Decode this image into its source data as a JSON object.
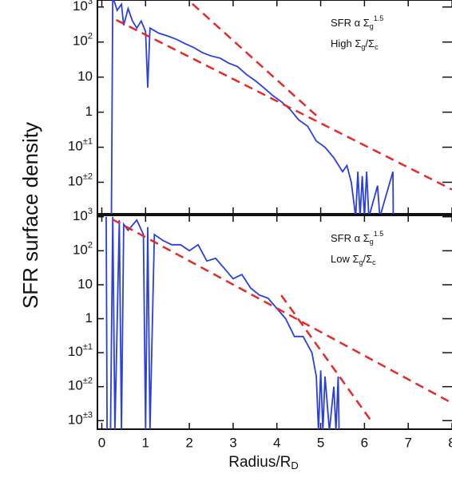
{
  "chart_data": [
    {
      "type": "line",
      "ylabel": "SFR surface density",
      "log_y": true,
      "annotation": [
        [
          "SFR α Σ",
          "g",
          "1.5"
        ],
        [
          "High Σ",
          "g",
          "/Σ",
          "c"
        ]
      ],
      "xlim": [
        -0.1,
        8
      ],
      "xticks": [
        0,
        1,
        2,
        3,
        4,
        5,
        6,
        7,
        8
      ],
      "ylim": [
        0.00126,
        1585
      ],
      "yticks": [
        {
          "value": 1000,
          "label": "10",
          "exponent": "3"
        },
        {
          "value": 100,
          "label": "10",
          "exponent": "2"
        },
        10,
        1,
        {
          "value": 0.1,
          "label": "10",
          "exponent": "±1"
        },
        {
          "value": 0.01,
          "label": "10",
          "exponent": "±2"
        }
      ],
      "series": [
        {
          "color": "#2a3fe0",
          "x": [
            0.22,
            0.25,
            0.35,
            0.45,
            0.5,
            0.6,
            0.7,
            0.8,
            0.9,
            1.0,
            1.05,
            1.1,
            1.3,
            1.5,
            1.7,
            1.9,
            2.1,
            2.3,
            2.5,
            2.7,
            2.9,
            3.1,
            3.3,
            3.5,
            3.7,
            3.9,
            4.1,
            4.3,
            4.5,
            4.7,
            4.9,
            5.1,
            5.3,
            5.5,
            5.6,
            5.7,
            5.8,
            5.85,
            5.9,
            5.95,
            6.0,
            6.05,
            6.1,
            6.3,
            6.35,
            6.65,
            6.66
          ],
          "values": [
            0.001,
            2000,
            800,
            1200,
            300,
            900,
            400,
            250,
            400,
            200,
            5,
            250,
            180,
            150,
            120,
            90,
            70,
            50,
            40,
            35,
            25,
            20,
            12,
            8,
            5,
            3,
            2,
            1.2,
            0.6,
            0.4,
            0.15,
            0.1,
            0.05,
            0.02,
            0.03,
            0.01,
            0.001,
            0.02,
            0.001,
            0.015,
            0.001,
            0.02,
            0.001,
            0.008,
            0.001,
            0.02,
            0.001
          ]
        },
        {
          "color": "#e52a2a",
          "dashed": true,
          "x": [
            0.33,
            8
          ],
          "values": [
            427,
            0.0062
          ]
        },
        {
          "color": "#e52a2a",
          "dashed": true,
          "x": [
            2.07,
            5.0
          ],
          "values": [
            1230,
            0.62
          ]
        }
      ]
    },
    {
      "type": "line",
      "xlabel": [
        "Radius/R",
        "D"
      ],
      "log_y": true,
      "annotation": [
        [
          "SFR α Σ",
          "g",
          "1.5"
        ],
        [
          "Low Σ",
          "g",
          "/Σ",
          "c"
        ]
      ],
      "xlim": [
        -0.1,
        8
      ],
      "xticks": [
        0,
        1,
        2,
        3,
        4,
        5,
        6,
        7,
        8
      ],
      "ylim": [
        0.00056,
        1100
      ],
      "yticks": [
        {
          "value": 1000,
          "label": "10",
          "exponent": "3"
        },
        {
          "value": 100,
          "label": "10",
          "exponent": "2"
        },
        10,
        1,
        {
          "value": 0.1,
          "label": "10",
          "exponent": "±1"
        },
        {
          "value": 0.01,
          "label": "10",
          "exponent": "±2"
        },
        {
          "value": 0.001,
          "label": "10",
          "exponent": "±3"
        }
      ],
      "series": [
        {
          "color": "#2a3fe0",
          "x": [
            0.1,
            0.12,
            0.2,
            0.25,
            0.3,
            0.4,
            0.45,
            0.5,
            0.6,
            0.8,
            0.95,
            1.0,
            1.05,
            1.1,
            1.2,
            1.4,
            1.6,
            1.8,
            2.0,
            2.2,
            2.4,
            2.6,
            2.8,
            3.0,
            3.2,
            3.4,
            3.6,
            3.8,
            4.0,
            4.2,
            4.4,
            4.6,
            4.8,
            4.9,
            4.95,
            5.0,
            5.05,
            5.1,
            5.2,
            5.3,
            5.35,
            5.4,
            5.42
          ],
          "values": [
            1000,
            0.0005,
            0.0005,
            1000,
            0.0005,
            800,
            0.0005,
            600,
            400,
            800,
            300,
            0.0005,
            500,
            0.0005,
            300,
            200,
            150,
            150,
            100,
            150,
            50,
            60,
            30,
            15,
            20,
            8,
            5,
            4,
            2,
            1,
            0.3,
            0.3,
            0.1,
            0.02,
            0.0005,
            0.03,
            0.0005,
            0.02,
            0.0005,
            0.01,
            0.0005,
            0.02,
            0.0005
          ]
        },
        {
          "color": "#e52a2a",
          "dashed": true,
          "x": [
            0.24,
            8
          ],
          "values": [
            850,
            0.0033
          ]
        },
        {
          "color": "#e52a2a",
          "dashed": true,
          "x": [
            4.1,
            6.15
          ],
          "values": [
            4.9,
            0.001
          ]
        }
      ]
    }
  ]
}
